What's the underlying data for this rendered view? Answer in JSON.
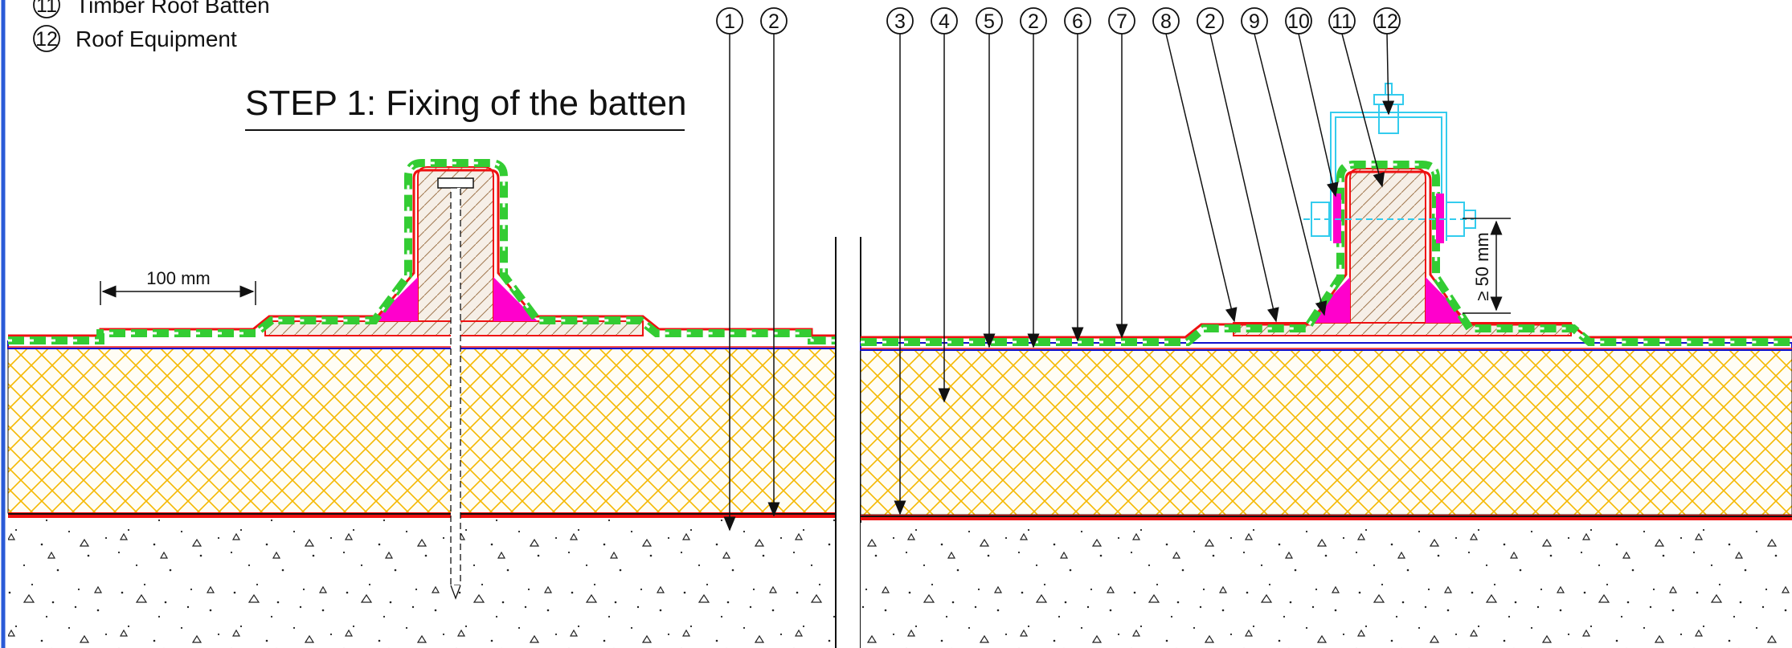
{
  "legend": [
    {
      "number": "11",
      "text": "Timber Roof Batten"
    },
    {
      "number": "12",
      "text": "Roof Equipment"
    }
  ],
  "title": "STEP 1: Fixing of the batten",
  "dimension_left": "100 mm",
  "dimension_right": "≥ 50 mm",
  "callouts_left": [
    "1",
    "2"
  ],
  "callouts_right": [
    "3",
    "4",
    "5",
    "2",
    "6",
    "7",
    "8",
    "2",
    "9",
    "10",
    "11",
    "12"
  ],
  "colors": {
    "membrane_green": "#33cc33",
    "membrane_red": "#ee1111",
    "fillet_magenta": "#ff00cc",
    "insulation_yellow": "#f5b800",
    "vapour_blue": "#1010cc",
    "equipment_cyan": "#33ccee"
  }
}
